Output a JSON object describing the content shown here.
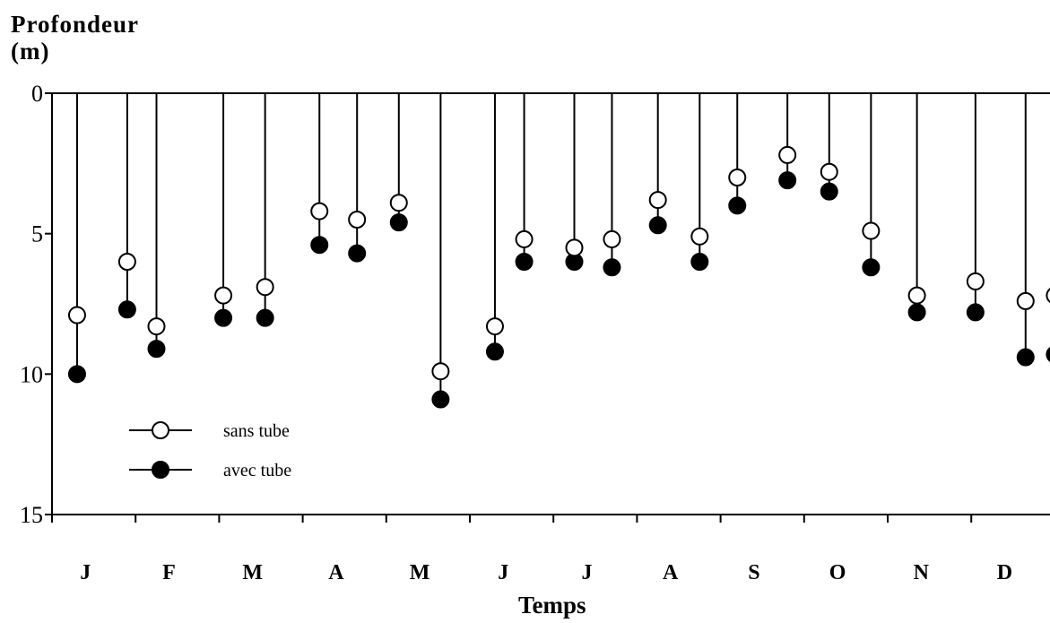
{
  "chart_data": {
    "type": "scatter",
    "title": "",
    "ylabel": [
      "Profondeur",
      "(m)"
    ],
    "xlabel": "Temps",
    "ylim": [
      0,
      15
    ],
    "y_inverted": true,
    "yticks": [
      "0",
      "5",
      "10",
      "15"
    ],
    "month_labels": [
      "J",
      "F",
      "M",
      "A",
      "M",
      "J",
      "J",
      "A",
      "S",
      "O",
      "N",
      "D"
    ],
    "x_unit": "month index (0 = start of J)",
    "series": [
      {
        "name": "sans tube",
        "marker": "open-circle",
        "points": [
          {
            "x": 0.3,
            "y": 7.9
          },
          {
            "x": 0.9,
            "y": 6.0
          },
          {
            "x": 1.25,
            "y": 8.3
          },
          {
            "x": 2.05,
            "y": 7.2
          },
          {
            "x": 2.55,
            "y": 6.9
          },
          {
            "x": 3.2,
            "y": 4.2
          },
          {
            "x": 3.65,
            "y": 4.5
          },
          {
            "x": 4.15,
            "y": 3.9
          },
          {
            "x": 4.65,
            "y": 9.9
          },
          {
            "x": 5.3,
            "y": 8.3
          },
          {
            "x": 5.65,
            "y": 5.2
          },
          {
            "x": 6.25,
            "y": 5.5
          },
          {
            "x": 6.7,
            "y": 5.2
          },
          {
            "x": 7.25,
            "y": 3.8
          },
          {
            "x": 7.75,
            "y": 5.1
          },
          {
            "x": 8.2,
            "y": 3.0
          },
          {
            "x": 8.8,
            "y": 2.2
          },
          {
            "x": 9.3,
            "y": 2.8
          },
          {
            "x": 9.8,
            "y": 4.9
          },
          {
            "x": 10.35,
            "y": 7.2
          },
          {
            "x": 11.05,
            "y": 6.7
          },
          {
            "x": 11.65,
            "y": 7.4
          },
          {
            "x": 12.0,
            "y": 7.2
          }
        ]
      },
      {
        "name": "avec tube",
        "marker": "filled-circle",
        "points": [
          {
            "x": 0.3,
            "y": 10.0
          },
          {
            "x": 0.9,
            "y": 7.7
          },
          {
            "x": 1.25,
            "y": 9.1
          },
          {
            "x": 2.05,
            "y": 8.0
          },
          {
            "x": 2.55,
            "y": 8.0
          },
          {
            "x": 3.2,
            "y": 5.4
          },
          {
            "x": 3.65,
            "y": 5.7
          },
          {
            "x": 4.15,
            "y": 4.6
          },
          {
            "x": 4.65,
            "y": 10.9
          },
          {
            "x": 5.3,
            "y": 9.2
          },
          {
            "x": 5.65,
            "y": 6.0
          },
          {
            "x": 6.25,
            "y": 6.0
          },
          {
            "x": 6.7,
            "y": 6.2
          },
          {
            "x": 7.25,
            "y": 4.7
          },
          {
            "x": 7.75,
            "y": 6.0
          },
          {
            "x": 8.2,
            "y": 4.0
          },
          {
            "x": 8.8,
            "y": 3.1
          },
          {
            "x": 9.3,
            "y": 3.5
          },
          {
            "x": 9.8,
            "y": 6.2
          },
          {
            "x": 10.35,
            "y": 7.8
          },
          {
            "x": 11.05,
            "y": 7.8
          },
          {
            "x": 11.65,
            "y": 9.4
          },
          {
            "x": 12.0,
            "y": 9.3
          }
        ]
      }
    ],
    "legend": {
      "placement": "lower-left",
      "entries": [
        "sans tube",
        "avec tube"
      ]
    },
    "grid": false,
    "stems_from_surface": true
  }
}
